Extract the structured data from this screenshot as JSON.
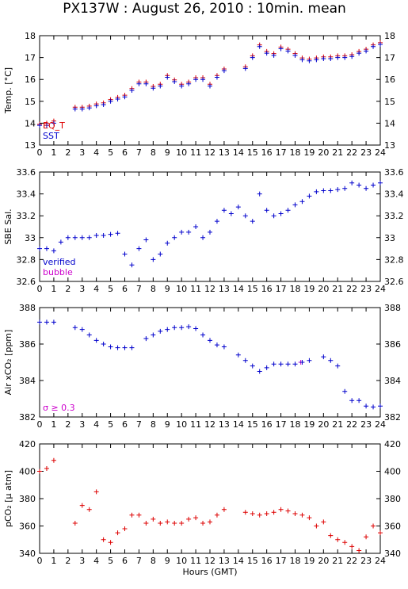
{
  "title": "PX137W : August 26, 2010 : 10min. mean",
  "chart_data": [
    {
      "type": "scatter",
      "ylabel": "Temp. [°C]",
      "legend": "lower left",
      "xlim": [
        0,
        24
      ],
      "xticks": [
        0,
        1,
        2,
        3,
        4,
        5,
        6,
        7,
        8,
        9,
        10,
        11,
        12,
        13,
        14,
        15,
        16,
        17,
        18,
        19,
        20,
        21,
        22,
        23,
        24
      ],
      "ylim": [
        13,
        18
      ],
      "yticks": [
        13,
        14,
        15,
        16,
        17,
        18
      ],
      "x": [
        0,
        0.5,
        1,
        1.5,
        2,
        2.5,
        3,
        3.5,
        4,
        4.5,
        5,
        5.5,
        6,
        6.5,
        7,
        7.5,
        8,
        8.5,
        9,
        9.5,
        10,
        10.5,
        11,
        11.5,
        12,
        12.5,
        13,
        13.5,
        14,
        14.5,
        15,
        15.5,
        16,
        16.5,
        17,
        17.5,
        18,
        18.5,
        19,
        19.5,
        20,
        20.5,
        21,
        21.5,
        22,
        22.5,
        23,
        23.5,
        24
      ],
      "series": [
        {
          "name": "EQ_T",
          "color": "#dd0000",
          "values": [
            13.95,
            14.0,
            14.1,
            null,
            null,
            14.73,
            14.73,
            14.78,
            14.88,
            14.93,
            15.08,
            15.18,
            15.28,
            15.58,
            15.88,
            15.88,
            15.68,
            15.78,
            16.18,
            15.98,
            15.78,
            15.88,
            16.08,
            16.08,
            15.78,
            16.18,
            16.48,
            null,
            null,
            16.58,
            17.08,
            17.58,
            17.28,
            17.18,
            17.48,
            17.38,
            17.18,
            16.98,
            16.93,
            16.98,
            17.03,
            17.03,
            17.08,
            17.08,
            17.13,
            17.28,
            17.38,
            17.58,
            17.68
          ]
        },
        {
          "name": "SST",
          "color": "#0000cc",
          "values": [
            13.9,
            13.9,
            14.0,
            null,
            null,
            14.65,
            14.65,
            14.7,
            14.8,
            14.85,
            15.0,
            15.1,
            15.2,
            15.5,
            15.8,
            15.8,
            15.6,
            15.7,
            16.1,
            15.9,
            15.7,
            15.8,
            16.0,
            16.0,
            15.7,
            16.1,
            16.4,
            null,
            null,
            16.5,
            17.0,
            17.5,
            17.2,
            17.1,
            17.4,
            17.3,
            17.1,
            16.9,
            16.85,
            16.9,
            16.95,
            16.95,
            17.0,
            17.0,
            17.05,
            17.2,
            17.3,
            17.5,
            17.6
          ]
        }
      ]
    },
    {
      "type": "scatter",
      "ylabel": "SBE Sal.",
      "legend": "lower left",
      "xlim": [
        0,
        24
      ],
      "xticks": [
        0,
        1,
        2,
        3,
        4,
        5,
        6,
        7,
        8,
        9,
        10,
        11,
        12,
        13,
        14,
        15,
        16,
        17,
        18,
        19,
        20,
        21,
        22,
        23,
        24
      ],
      "ylim": [
        32.6,
        33.6
      ],
      "yticks": [
        32.6,
        32.8,
        33,
        33.2,
        33.4,
        33.6
      ],
      "x": [
        0,
        0.5,
        1,
        1.5,
        2,
        2.5,
        3,
        3.5,
        4,
        4.5,
        5,
        5.5,
        6,
        6.5,
        7,
        7.5,
        8,
        8.5,
        9,
        9.5,
        10,
        10.5,
        11,
        11.5,
        12,
        12.5,
        13,
        13.5,
        14,
        14.5,
        15,
        15.5,
        16,
        16.5,
        17,
        17.5,
        18,
        18.5,
        19,
        19.5,
        20,
        20.5,
        21,
        21.5,
        22,
        22.5,
        23,
        23.5,
        24
      ],
      "series": [
        {
          "name": "verified",
          "color": "#0000cc",
          "values": [
            32.9,
            32.9,
            32.88,
            32.96,
            33.0,
            33.0,
            33.0,
            33.0,
            33.02,
            33.02,
            33.03,
            33.04,
            32.85,
            32.75,
            32.9,
            32.98,
            32.8,
            32.85,
            32.95,
            33.0,
            33.05,
            33.05,
            33.1,
            33.0,
            33.05,
            33.15,
            33.25,
            33.22,
            33.28,
            33.2,
            33.15,
            33.4,
            33.25,
            33.2,
            33.22,
            33.25,
            33.3,
            33.33,
            33.38,
            33.42,
            33.43,
            33.43,
            33.44,
            33.45,
            33.5,
            33.48,
            33.45,
            33.48,
            33.5
          ]
        },
        {
          "name": "bubble",
          "color": "#cc00cc",
          "x": [],
          "values": []
        }
      ]
    },
    {
      "type": "scatter",
      "ylabel": "Air xCO₂ [ppm]",
      "legend": "lower left",
      "xlim": [
        0,
        24
      ],
      "xticks": [
        0,
        1,
        2,
        3,
        4,
        5,
        6,
        7,
        8,
        9,
        10,
        11,
        12,
        13,
        14,
        15,
        16,
        17,
        18,
        19,
        20,
        21,
        22,
        23,
        24
      ],
      "ylim": [
        382,
        388
      ],
      "yticks": [
        382,
        384,
        386,
        388
      ],
      "x": [
        0,
        0.5,
        1,
        1.5,
        2,
        2.5,
        3,
        3.5,
        4,
        4.5,
        5,
        5.5,
        6,
        6.5,
        7,
        7.5,
        8,
        8.5,
        9,
        9.5,
        10,
        10.5,
        11,
        11.5,
        12,
        12.5,
        13,
        13.5,
        14,
        14.5,
        15,
        15.5,
        16,
        16.5,
        17,
        17.5,
        18,
        18.5,
        19,
        19.5,
        20,
        20.5,
        21,
        21.5,
        22,
        22.5,
        23,
        23.5,
        24
      ],
      "series": [
        {
          "name": "σ ≥ 0.3",
          "color": "#cc00cc",
          "x": [
            18.4
          ],
          "values": [
            385.0
          ]
        },
        {
          "color": "#0000cc",
          "values": [
            387.2,
            387.2,
            387.2,
            null,
            null,
            386.9,
            386.8,
            386.5,
            386.2,
            386.0,
            385.85,
            385.8,
            385.8,
            385.8,
            null,
            386.3,
            386.5,
            386.7,
            386.8,
            386.9,
            386.9,
            386.95,
            386.85,
            386.5,
            386.2,
            385.95,
            385.85,
            null,
            385.4,
            385.1,
            384.8,
            384.5,
            384.7,
            384.9,
            384.9,
            384.9,
            384.9,
            385.0,
            385.1,
            null,
            385.3,
            385.1,
            384.8,
            383.4,
            382.9,
            382.9,
            382.6,
            382.55,
            382.6
          ]
        }
      ]
    },
    {
      "type": "scatter",
      "ylabel": "pCO₂ [μ atm]",
      "xlabel": "Hours (GMT)",
      "xlim": [
        0,
        24
      ],
      "xticks": [
        0,
        1,
        2,
        3,
        4,
        5,
        6,
        7,
        8,
        9,
        10,
        11,
        12,
        13,
        14,
        15,
        16,
        17,
        18,
        19,
        20,
        21,
        22,
        23,
        24
      ],
      "ylim": [
        340,
        420
      ],
      "yticks": [
        340,
        360,
        380,
        400,
        420
      ],
      "x": [
        0,
        0.5,
        1,
        1.5,
        2,
        2.5,
        3,
        3.5,
        4,
        4.5,
        5,
        5.5,
        6,
        6.5,
        7,
        7.5,
        8,
        8.5,
        9,
        9.5,
        10,
        10.5,
        11,
        11.5,
        12,
        12.5,
        13,
        13.5,
        14,
        14.5,
        15,
        15.5,
        16,
        16.5,
        17,
        17.5,
        18,
        18.5,
        19,
        19.5,
        20,
        20.5,
        21,
        21.5,
        22,
        22.5,
        23,
        23.5,
        24
      ],
      "series": [
        {
          "color": "#dd0000",
          "values": [
            400,
            402,
            408,
            null,
            null,
            362,
            375,
            372,
            385,
            350,
            348,
            355,
            358,
            368,
            368,
            362,
            365,
            362,
            363,
            362,
            362,
            365,
            366,
            362,
            363,
            368,
            372,
            null,
            null,
            370,
            369,
            368,
            369,
            370,
            372,
            371,
            369,
            368,
            366,
            360,
            363,
            353,
            350,
            348,
            345,
            342,
            352,
            360,
            355
          ]
        }
      ]
    }
  ]
}
